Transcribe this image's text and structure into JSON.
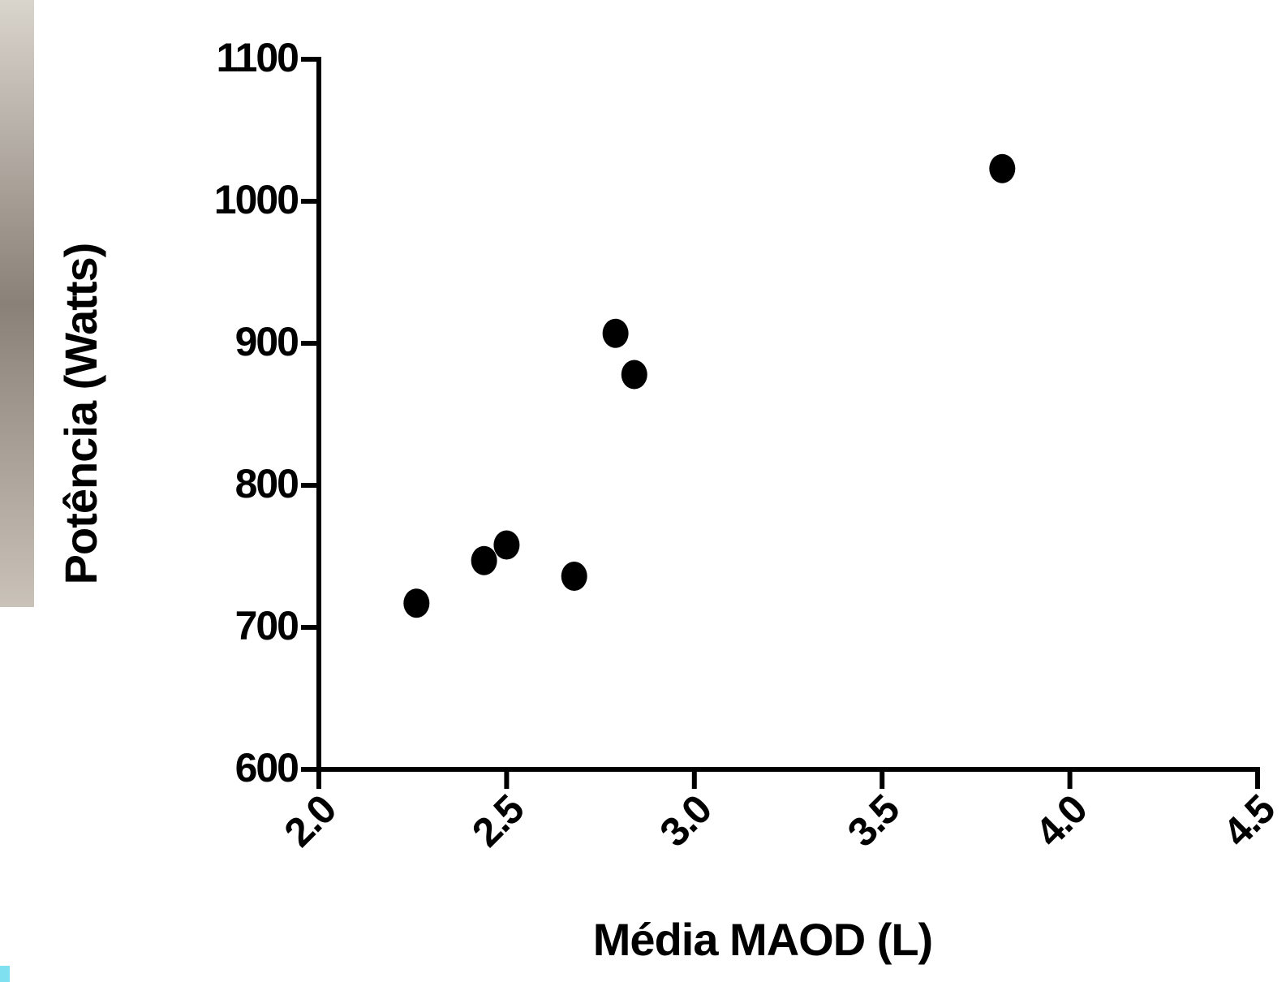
{
  "chart_data": {
    "type": "scatter",
    "x_label": "Média MAOD (L)",
    "y_label": "Potência (Watts)",
    "x": [
      2.26,
      2.44,
      2.5,
      2.68,
      2.79,
      2.84,
      3.82
    ],
    "values": [
      717,
      747,
      758,
      736,
      907,
      878,
      1023
    ],
    "color": "#000000",
    "xlim": [
      2.0,
      4.5
    ],
    "xticks": [
      {
        "value": 2.0,
        "label": "2.0"
      },
      {
        "value": 2.5,
        "label": "2.5"
      },
      {
        "value": 3.0,
        "label": "3.0"
      },
      {
        "value": 3.5,
        "label": "3.5"
      },
      {
        "value": 4.0,
        "label": "4.0"
      },
      {
        "value": 4.5,
        "label": "4.5"
      }
    ],
    "ylim": [
      600,
      1100
    ],
    "yticks": [
      600,
      700,
      800,
      900,
      1000,
      1100
    ]
  }
}
